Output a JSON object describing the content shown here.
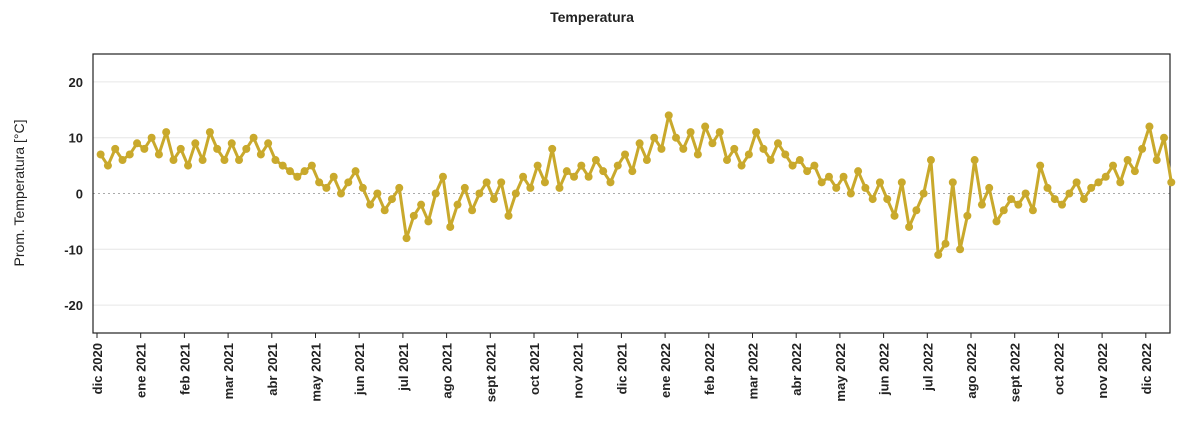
{
  "chart_data": {
    "type": "line",
    "title": "Temperatura",
    "y_label": "Prom. Temperatura [°C]",
    "categories": [
      "dic 2020",
      "ene 2021",
      "feb 2021",
      "mar 2021",
      "abr 2021",
      "may 2021",
      "jun 2021",
      "jul 2021",
      "ago 2021",
      "sept 2021",
      "oct 2021",
      "nov 2021",
      "dic 2021",
      "ene 2022",
      "feb 2022",
      "mar 2022",
      "abr 2022",
      "may 2022",
      "jun 2022",
      "jul 2022",
      "ago 2022",
      "sept 2022",
      "oct 2022",
      "nov 2022",
      "dic 2022"
    ],
    "series": [
      {
        "name": "Temperatura",
        "color": "#c9a92c",
        "values": [
          [
            7,
            5,
            8,
            6,
            7,
            9
          ],
          [
            8,
            10,
            7,
            11,
            6,
            8
          ],
          [
            5,
            9,
            6,
            11,
            8,
            6
          ],
          [
            9,
            6,
            8,
            10,
            7,
            9
          ],
          [
            6,
            5,
            4,
            3,
            4,
            5
          ],
          [
            2,
            1,
            3,
            0,
            2,
            4
          ],
          [
            1,
            -2,
            0,
            -3,
            -1,
            1
          ],
          [
            -8,
            -4,
            -2,
            -5,
            0,
            3
          ],
          [
            -6,
            -2,
            1,
            -3,
            0,
            2
          ],
          [
            -1,
            2,
            -4,
            0,
            3,
            1
          ],
          [
            5,
            2,
            8,
            1,
            4,
            3
          ],
          [
            5,
            3,
            6,
            4,
            2,
            5
          ],
          [
            7,
            4,
            9,
            6,
            10,
            8
          ],
          [
            14,
            10,
            8,
            11,
            7,
            12
          ],
          [
            9,
            11,
            6,
            8,
            5,
            7
          ],
          [
            11,
            8,
            6,
            9,
            7,
            5
          ],
          [
            6,
            4,
            5,
            2,
            3,
            1
          ],
          [
            3,
            0,
            4,
            1,
            -1,
            2
          ],
          [
            -1,
            -4,
            2,
            -6,
            -3,
            0
          ],
          [
            6,
            -11,
            -9,
            2,
            -10,
            -4
          ],
          [
            6,
            -2,
            1,
            -5,
            -3,
            -1
          ],
          [
            -2,
            0,
            -3,
            5,
            1,
            -1
          ],
          [
            -2,
            0,
            2,
            -1,
            1,
            2
          ],
          [
            3,
            5,
            2,
            6,
            4,
            8
          ],
          [
            12,
            6,
            10,
            2
          ]
        ]
      }
    ],
    "ylim": [
      -25,
      25
    ],
    "yticks": [
      -20,
      -10,
      0,
      10,
      20
    ],
    "grid": true
  }
}
